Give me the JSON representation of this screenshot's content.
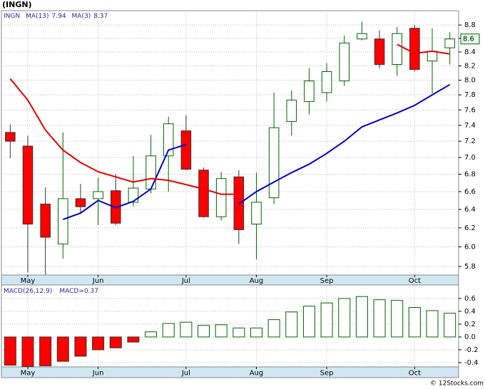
{
  "chart_data": [
    {
      "type": "candlestick",
      "title": "(INGN)",
      "ticker": "INGN",
      "categories": [
        null,
        "May",
        null,
        null,
        null,
        "Jun",
        null,
        null,
        null,
        null,
        "Jul",
        null,
        null,
        null,
        "Aug",
        null,
        null,
        null,
        "Sep",
        null,
        null,
        null,
        null,
        "Oct",
        null,
        null
      ],
      "open": [
        7.31,
        7.14,
        6.46,
        6.03,
        6.52,
        6.52,
        6.61,
        6.48,
        6.63,
        7.02,
        7.33,
        6.85,
        6.32,
        6.77,
        6.24,
        6.53,
        7.45,
        7.71,
        7.83,
        7.99,
        8.59,
        8.59,
        8.22,
        8.75,
        8.27,
        8.46
      ],
      "high": [
        7.41,
        7.27,
        6.65,
        7.31,
        6.69,
        6.76,
        6.8,
        7.02,
        7.28,
        7.51,
        7.53,
        6.88,
        6.83,
        6.85,
        6.82,
        7.83,
        7.86,
        8.17,
        8.24,
        8.64,
        8.85,
        8.72,
        8.77,
        8.8,
        8.75,
        8.69
      ],
      "low": [
        6.99,
        5.74,
        5.72,
        5.88,
        6.35,
        6.23,
        6.23,
        6.43,
        6.58,
        6.6,
        6.85,
        6.31,
        6.28,
        6.03,
        5.87,
        6.46,
        7.27,
        7.54,
        7.71,
        7.92,
        8.57,
        8.17,
        8.06,
        8.12,
        7.82,
        8.22
      ],
      "close": [
        7.2,
        6.24,
        6.1,
        6.52,
        6.43,
        6.6,
        6.25,
        6.64,
        7.02,
        7.42,
        6.86,
        6.32,
        6.75,
        6.18,
        6.48,
        7.37,
        7.73,
        7.99,
        8.12,
        8.53,
        8.67,
        8.22,
        8.67,
        8.15,
        8.41,
        8.59
      ],
      "up_color": "#006600",
      "down_color": "#ff0000",
      "series": [
        {
          "name": "MA(13)",
          "value_label": "7.94",
          "color": "#0000cc",
          "values": [
            null,
            null,
            null,
            6.29,
            6.36,
            6.5,
            6.42,
            6.49,
            6.63,
            7.09,
            7.16,
            null,
            null,
            6.46,
            6.6,
            6.71,
            6.82,
            6.92,
            7.05,
            7.2,
            7.38,
            7.47,
            7.56,
            7.66,
            7.8,
            7.94
          ]
        },
        {
          "name": "MA(3)",
          "value_label": "8.37",
          "color": "#e60000",
          "values": [
            8.02,
            7.73,
            7.34,
            7.09,
            6.94,
            6.83,
            6.77,
            6.71,
            6.75,
            6.73,
            6.68,
            6.63,
            6.57,
            6.57,
            null,
            null,
            null,
            null,
            null,
            null,
            null,
            null,
            8.51,
            8.38,
            8.41,
            8.37
          ]
        }
      ],
      "last_close_label": "8.6",
      "ylim": [
        5.715,
        9.02
      ],
      "log_scale": true,
      "grid": true,
      "yticks": [
        5.8,
        {
          "value": 6,
          "label": "6.0"
        },
        6.2,
        6.4,
        6.6,
        6.8,
        {
          "value": 7,
          "label": "7.0"
        },
        7.2,
        7.4,
        7.6,
        7.8,
        {
          "value": 8,
          "label": "8.0"
        },
        8.2,
        8.4,
        8.6,
        8.8
      ]
    },
    {
      "type": "bar",
      "title": "MACD(26,12,9)",
      "value_text": "MACD=0.37",
      "categories": [
        null,
        "May",
        null,
        null,
        null,
        "Jun",
        null,
        null,
        null,
        null,
        "Jul",
        null,
        null,
        null,
        "Aug",
        null,
        null,
        null,
        "Sep",
        null,
        null,
        null,
        null,
        "Oct",
        null,
        null
      ],
      "values": [
        -0.44,
        -0.46,
        -0.45,
        -0.38,
        -0.3,
        -0.2,
        -0.17,
        -0.08,
        0.08,
        0.21,
        0.23,
        0.18,
        0.19,
        0.14,
        0.14,
        0.27,
        0.39,
        0.48,
        0.53,
        0.6,
        0.63,
        0.58,
        0.57,
        0.46,
        0.41,
        0.37
      ],
      "positive_color": "#006600",
      "negative_color": "#ff0000",
      "ylim": [
        -0.467,
        0.81
      ],
      "grid": true,
      "yticks": [
        -0.4,
        -0.2,
        {
          "value": 0,
          "label": "0.0"
        },
        0.2,
        0.4,
        0.6
      ]
    }
  ],
  "footer": "© 12Stocks.com"
}
